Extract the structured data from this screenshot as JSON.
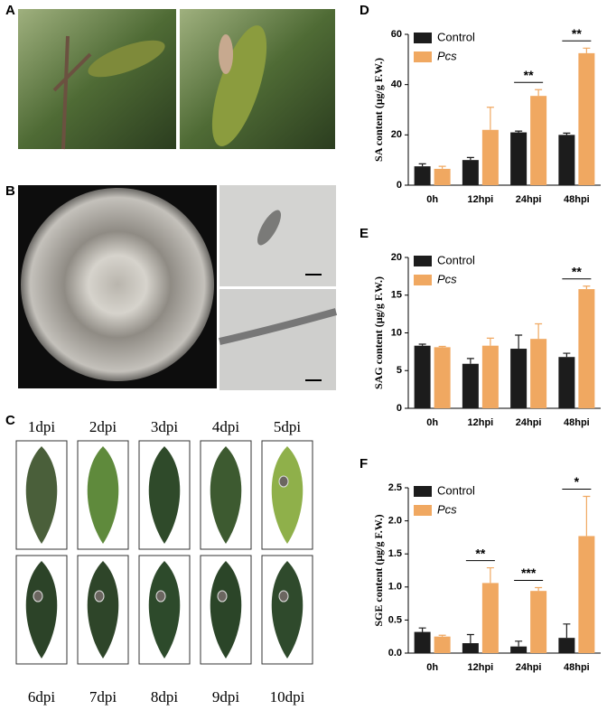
{
  "panels": {
    "A": "A",
    "B": "B",
    "C": {
      "label": "C",
      "leaves": [
        "1dpi",
        "2dpi",
        "3dpi",
        "4dpi",
        "5dpi",
        "6dpi",
        "7dpi",
        "8dpi",
        "9dpi",
        "10dpi"
      ]
    }
  },
  "chart_data": [
    {
      "type": "bar",
      "panel_label": "D",
      "y_label": "SA content (μg/g F.W.)",
      "categories": [
        "0h",
        "12hpi",
        "24hpi",
        "48hpi"
      ],
      "series": [
        {
          "name": "Control",
          "color": "#1c1c1c",
          "values": [
            7.5,
            10,
            21,
            20
          ],
          "errors": [
            1,
            1,
            0.5,
            0.7
          ]
        },
        {
          "name": "Pcs",
          "color": "#f0a861",
          "values": [
            6.5,
            22,
            35.5,
            52.5
          ],
          "errors": [
            1,
            9,
            2.5,
            2
          ]
        }
      ],
      "significance": [
        null,
        null,
        "**",
        "**"
      ],
      "ylim": [
        0,
        60
      ],
      "yticks": [
        0,
        20,
        40,
        60
      ]
    },
    {
      "type": "bar",
      "panel_label": "E",
      "y_label": "SAG content (μg/g F.W.)",
      "categories": [
        "0h",
        "12hpi",
        "24hpi",
        "48hpi"
      ],
      "series": [
        {
          "name": "Control",
          "color": "#1c1c1c",
          "values": [
            8.3,
            5.9,
            7.9,
            6.8
          ],
          "errors": [
            0.2,
            0.7,
            1.8,
            0.5
          ]
        },
        {
          "name": "Pcs",
          "color": "#f0a861",
          "values": [
            8.1,
            8.3,
            9.2,
            15.8
          ],
          "errors": [
            0.1,
            1,
            2,
            0.4
          ]
        }
      ],
      "significance": [
        null,
        null,
        null,
        "**"
      ],
      "ylim": [
        0,
        20
      ],
      "yticks": [
        0,
        5,
        10,
        15,
        20
      ]
    },
    {
      "type": "bar",
      "panel_label": "F",
      "y_label": "SGE content (μg/g F.W.)",
      "categories": [
        "0h",
        "12hpi",
        "24hpi",
        "48hpi"
      ],
      "series": [
        {
          "name": "Control",
          "color": "#1c1c1c",
          "values": [
            0.32,
            0.15,
            0.1,
            0.23
          ],
          "errors": [
            0.06,
            0.13,
            0.08,
            0.21
          ]
        },
        {
          "name": "Pcs",
          "color": "#f0a861",
          "values": [
            0.25,
            1.06,
            0.94,
            1.77
          ],
          "errors": [
            0.02,
            0.23,
            0.05,
            0.6
          ]
        }
      ],
      "significance": [
        null,
        "**",
        "***",
        "*"
      ],
      "ylim": [
        0,
        2.5
      ],
      "yticks": [
        {
          "value": 0,
          "label": "0.0"
        },
        0.5,
        {
          "value": 1,
          "label": "1.0"
        },
        1.5,
        {
          "value": 2,
          "label": "2.0"
        },
        2.5
      ]
    }
  ]
}
